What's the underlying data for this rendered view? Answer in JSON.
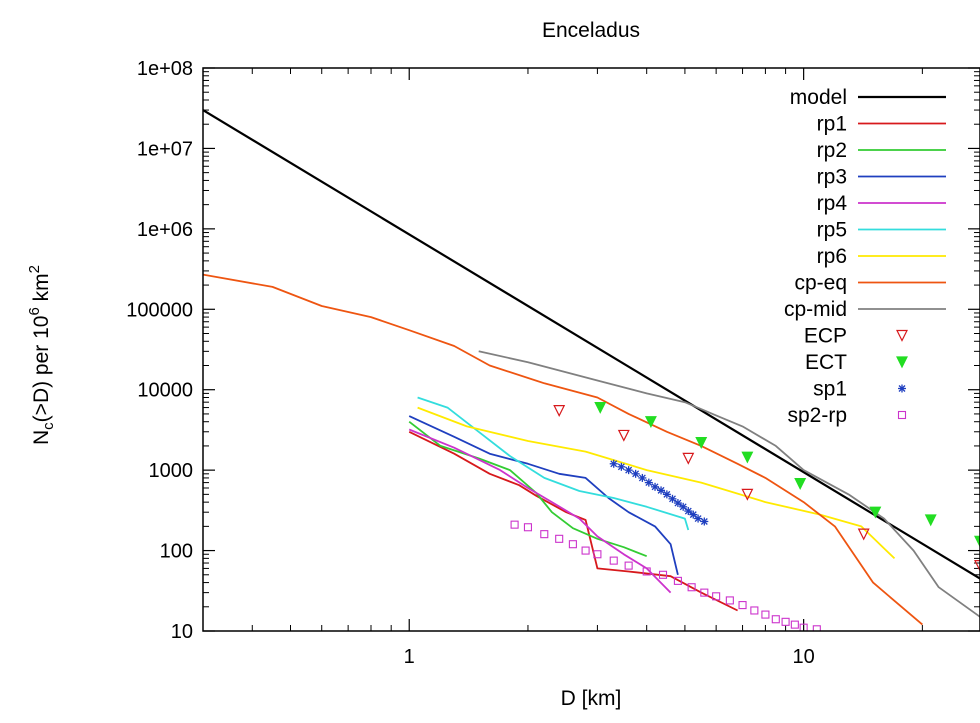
{
  "chart_data": {
    "type": "line",
    "title": "Enceladus",
    "xlabel": "D [km]",
    "ylabel": {
      "base": "N",
      "sub": "c",
      "mid": "(>D) per 10",
      "sup1": "6",
      "unit": " km",
      "sup2": "2"
    },
    "xscale": "log",
    "yscale": "log",
    "xlim": [
      0.3,
      28
    ],
    "ylim": [
      10,
      100000000
    ],
    "xticks": [
      {
        "value": 1,
        "label": "1"
      },
      {
        "value": 10,
        "label": "10"
      }
    ],
    "yticks": [
      {
        "value": 10,
        "label": "10"
      },
      {
        "value": 100,
        "label": "100"
      },
      {
        "value": 1000,
        "label": "1000"
      },
      {
        "value": 10000,
        "label": "10000"
      },
      {
        "value": 100000,
        "label": "100000"
      },
      {
        "value": 1000000,
        "label": "1e+06"
      },
      {
        "value": 10000000,
        "label": "1e+07"
      },
      {
        "value": 100000000,
        "label": "1e+08"
      }
    ],
    "legend_position": "top-right",
    "series": [
      {
        "name": "model",
        "kind": "line",
        "color": "#000000",
        "points": [
          [
            0.3,
            30000000
          ],
          [
            28,
            45
          ]
        ]
      },
      {
        "name": "rp1",
        "kind": "line",
        "color": "#d7191c",
        "points": [
          [
            1.0,
            3000
          ],
          [
            1.3,
            1600
          ],
          [
            1.6,
            900
          ],
          [
            1.9,
            650
          ],
          [
            2.1,
            480
          ],
          [
            2.5,
            300
          ],
          [
            2.8,
            240
          ],
          [
            3.0,
            60
          ],
          [
            3.6,
            55
          ],
          [
            4.6,
            48
          ],
          [
            5.5,
            30
          ],
          [
            6.8,
            18
          ]
        ]
      },
      {
        "name": "rp2",
        "kind": "line",
        "color": "#33cc33",
        "points": [
          [
            1.0,
            4000
          ],
          [
            1.2,
            2000
          ],
          [
            1.5,
            1400
          ],
          [
            1.8,
            1000
          ],
          [
            2.1,
            520
          ],
          [
            2.3,
            300
          ],
          [
            2.6,
            190
          ],
          [
            3.0,
            140
          ],
          [
            3.5,
            110
          ],
          [
            4.0,
            85
          ]
        ]
      },
      {
        "name": "rp3",
        "kind": "line",
        "color": "#1f3fbf",
        "points": [
          [
            1.0,
            4700
          ],
          [
            1.3,
            2600
          ],
          [
            1.6,
            1600
          ],
          [
            2.0,
            1200
          ],
          [
            2.4,
            900
          ],
          [
            2.8,
            800
          ],
          [
            3.2,
            450
          ],
          [
            3.6,
            300
          ],
          [
            4.2,
            200
          ],
          [
            4.6,
            120
          ],
          [
            4.8,
            50
          ]
        ]
      },
      {
        "name": "rp4",
        "kind": "line",
        "color": "#cc33cc",
        "points": [
          [
            1.0,
            3200
          ],
          [
            1.3,
            1900
          ],
          [
            1.7,
            1000
          ],
          [
            2.0,
            600
          ],
          [
            2.3,
            400
          ],
          [
            2.7,
            250
          ],
          [
            3.0,
            150
          ],
          [
            3.5,
            90
          ],
          [
            4.0,
            60
          ],
          [
            4.6,
            30
          ]
        ]
      },
      {
        "name": "rp5",
        "kind": "line",
        "color": "#33dddd",
        "points": [
          [
            1.05,
            8000
          ],
          [
            1.25,
            6000
          ],
          [
            1.5,
            3000
          ],
          [
            1.8,
            1500
          ],
          [
            2.2,
            800
          ],
          [
            2.7,
            550
          ],
          [
            3.3,
            450
          ],
          [
            4.0,
            350
          ],
          [
            5.0,
            250
          ],
          [
            5.1,
            180
          ]
        ]
      },
      {
        "name": "rp6",
        "kind": "line",
        "color": "#ffea00",
        "points": [
          [
            1.05,
            6000
          ],
          [
            1.4,
            3500
          ],
          [
            2.0,
            2300
          ],
          [
            2.8,
            1700
          ],
          [
            4.0,
            1000
          ],
          [
            5.5,
            700
          ],
          [
            8.0,
            400
          ],
          [
            11.0,
            280
          ],
          [
            14.0,
            200
          ],
          [
            17.0,
            80
          ]
        ]
      },
      {
        "name": "cp-eq",
        "kind": "line",
        "color": "#ee5511",
        "points": [
          [
            0.3,
            270000
          ],
          [
            0.45,
            190000
          ],
          [
            0.6,
            110000
          ],
          [
            0.8,
            80000
          ],
          [
            1.0,
            55000
          ],
          [
            1.3,
            35000
          ],
          [
            1.6,
            20000
          ],
          [
            2.2,
            12000
          ],
          [
            3.0,
            8000
          ],
          [
            3.6,
            5000
          ],
          [
            4.5,
            3000
          ],
          [
            5.5,
            2000
          ],
          [
            6.8,
            1200
          ],
          [
            8.0,
            800
          ],
          [
            10.0,
            400
          ],
          [
            12.0,
            200
          ],
          [
            15.0,
            40
          ],
          [
            20.0,
            12
          ]
        ]
      },
      {
        "name": "cp-mid",
        "kind": "line",
        "color": "#808080",
        "points": [
          [
            1.5,
            30000
          ],
          [
            2.0,
            22000
          ],
          [
            3.0,
            13000
          ],
          [
            4.0,
            9000
          ],
          [
            5.0,
            7000
          ],
          [
            6.0,
            4800
          ],
          [
            7.0,
            3500
          ],
          [
            8.5,
            2000
          ],
          [
            10.0,
            1000
          ],
          [
            13.0,
            500
          ],
          [
            16.0,
            250
          ],
          [
            19.0,
            100
          ],
          [
            22.0,
            35
          ],
          [
            28.0,
            15
          ]
        ]
      },
      {
        "name": "ECP",
        "kind": "marker",
        "marker": "triangle-down-open",
        "color": "#d7191c",
        "points": [
          [
            2.4,
            5500
          ],
          [
            3.5,
            2700
          ],
          [
            5.1,
            1400
          ],
          [
            7.2,
            500
          ],
          [
            14.2,
            160
          ],
          [
            28.0,
            65
          ]
        ]
      },
      {
        "name": "ECT",
        "kind": "marker",
        "marker": "triangle-down-filled",
        "color": "#22dd22",
        "points": [
          [
            3.05,
            6000
          ],
          [
            4.1,
            4000
          ],
          [
            5.5,
            2200
          ],
          [
            7.2,
            1450
          ],
          [
            9.8,
            680
          ],
          [
            15.2,
            300
          ],
          [
            21.0,
            240
          ],
          [
            28.0,
            130
          ]
        ]
      },
      {
        "name": "sp1",
        "kind": "marker",
        "marker": "asterisk",
        "color": "#1f3fbf",
        "points": [
          [
            3.3,
            1200
          ],
          [
            3.45,
            1100
          ],
          [
            3.6,
            1000
          ],
          [
            3.75,
            900
          ],
          [
            3.9,
            800
          ],
          [
            4.05,
            700
          ],
          [
            4.2,
            620
          ],
          [
            4.35,
            560
          ],
          [
            4.5,
            500
          ],
          [
            4.65,
            440
          ],
          [
            4.8,
            390
          ],
          [
            4.95,
            350
          ],
          [
            5.1,
            310
          ],
          [
            5.25,
            280
          ],
          [
            5.4,
            250
          ],
          [
            5.6,
            230
          ]
        ]
      },
      {
        "name": "sp2-rp",
        "kind": "marker",
        "marker": "square-open",
        "color": "#cc33cc",
        "points": [
          [
            1.85,
            210
          ],
          [
            2.0,
            195
          ],
          [
            2.2,
            160
          ],
          [
            2.4,
            140
          ],
          [
            2.6,
            120
          ],
          [
            2.8,
            100
          ],
          [
            3.0,
            90
          ],
          [
            3.3,
            75
          ],
          [
            3.6,
            65
          ],
          [
            4.0,
            55
          ],
          [
            4.4,
            50
          ],
          [
            4.8,
            42
          ],
          [
            5.2,
            35
          ],
          [
            5.6,
            30
          ],
          [
            6.0,
            27
          ],
          [
            6.5,
            24
          ],
          [
            7.0,
            21
          ],
          [
            7.5,
            18
          ],
          [
            8.0,
            16
          ],
          [
            8.5,
            14
          ],
          [
            9.0,
            13
          ],
          [
            9.5,
            12
          ],
          [
            10.0,
            11
          ],
          [
            10.8,
            10.5
          ]
        ]
      }
    ]
  }
}
